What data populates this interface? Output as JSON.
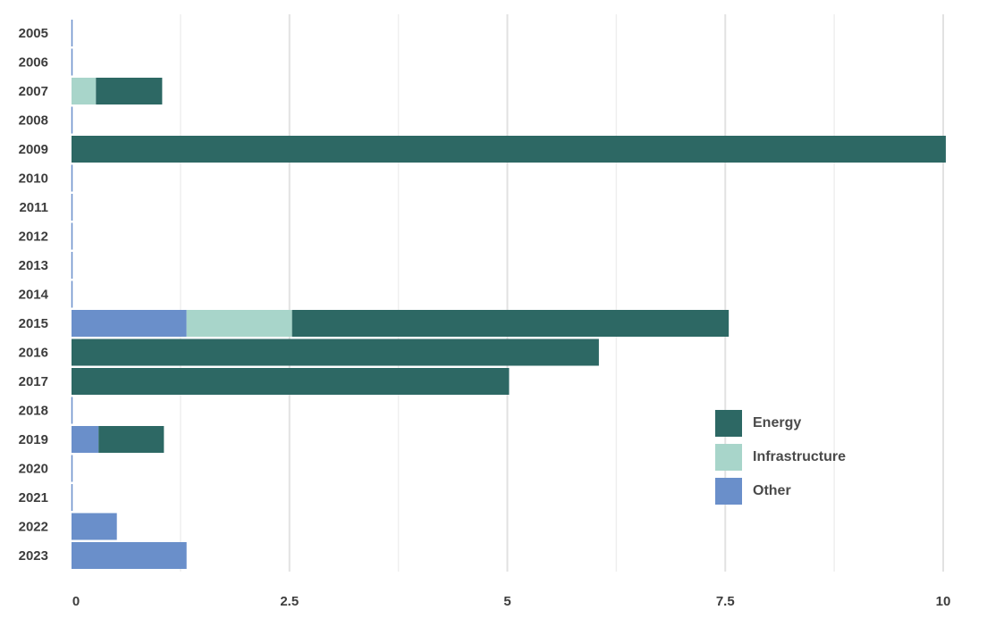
{
  "chart_data": {
    "type": "bar",
    "orientation": "horizontal",
    "stacked": true,
    "categories": [
      "2005",
      "2006",
      "2007",
      "2008",
      "2009",
      "2010",
      "2011",
      "2012",
      "2013",
      "2014",
      "2015",
      "2016",
      "2017",
      "2018",
      "2019",
      "2020",
      "2021",
      "2022",
      "2023"
    ],
    "series": [
      {
        "name": "Other",
        "color": "#6a8fca",
        "values": [
          0,
          0,
          0,
          0,
          0,
          0,
          0,
          0,
          0,
          0,
          1.32,
          0,
          0,
          0,
          0.31,
          0,
          0,
          0.52,
          1.32
        ]
      },
      {
        "name": "Infrastructure",
        "color": "#a8d5ca",
        "values": [
          0,
          0,
          0.28,
          0,
          0,
          0,
          0,
          0,
          0,
          0,
          1.21,
          0,
          0,
          0,
          0,
          0,
          0,
          0,
          0
        ]
      },
      {
        "name": "Energy",
        "color": "#2d6864",
        "values": [
          0,
          0,
          0.76,
          0,
          10.03,
          0,
          0,
          0,
          0,
          0,
          5.01,
          6.05,
          5.02,
          0,
          0.75,
          0,
          0,
          0,
          0
        ]
      }
    ],
    "xlim": [
      0,
      10
    ],
    "xticks": [
      "0",
      "2.5",
      "5",
      "7.5",
      "10"
    ],
    "xtick_values": [
      0,
      2.5,
      5,
      7.5,
      10
    ],
    "grid": true,
    "legend_position": "bottom-right",
    "legend_order": [
      "Energy",
      "Infrastructure",
      "Other"
    ]
  }
}
